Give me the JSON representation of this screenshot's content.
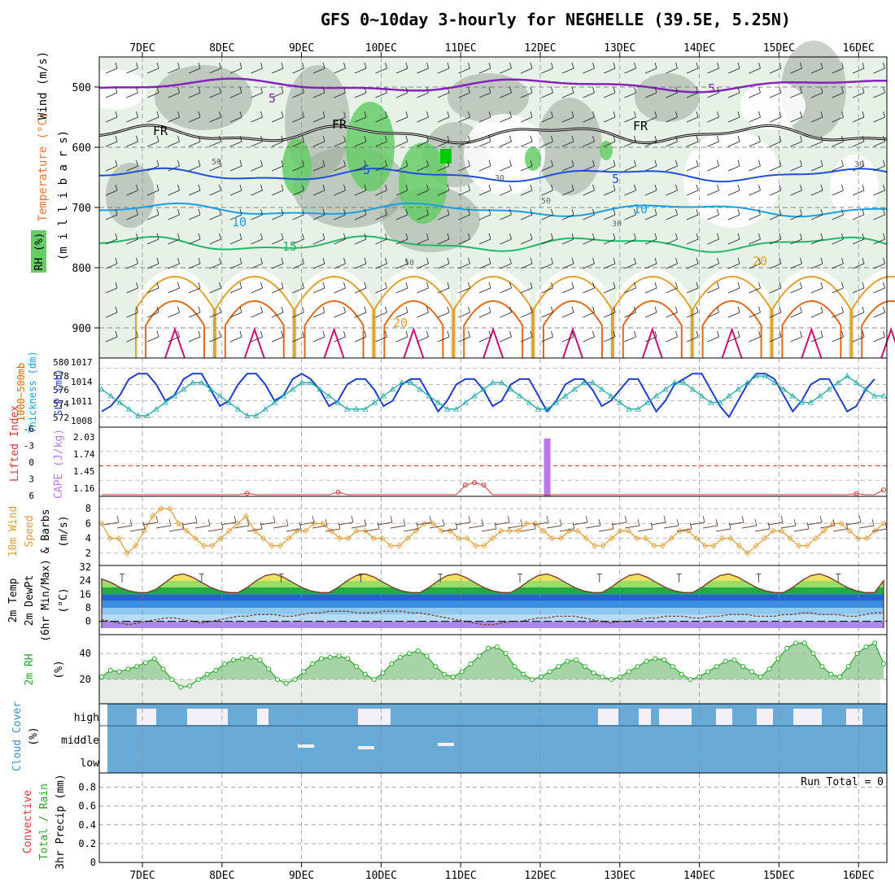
{
  "title": "GFS 0~10day 3-hourly for NEGHELLE (39.5E, 5.25N)",
  "dates": [
    "7DEC",
    "8DEC",
    "9DEC",
    "10DEC",
    "11DEC",
    "12DEC",
    "13DEC",
    "14DEC",
    "15DEC",
    "16DEC"
  ],
  "colors": {
    "rh_green": "#66cc66",
    "pale_green": "#e6f2e6",
    "gray_green": "#9aaa9a",
    "slp_blue": "#1e3fcc",
    "thickness_cyan": "#22aaaa",
    "cape_purple": "#bb77ee",
    "lifted_red": "#dd3333",
    "wind_orange": "#e69a2e",
    "cloud_blue": "#6aaad6",
    "temp_label": "#e07a3c",
    "wind_label": "#5b2a8c"
  },
  "upper_panel": {
    "ylabels": {
      "wind": "Wind (m/s)",
      "temperature": "Temperature (°C)",
      "rh": "RH (%)",
      "millibars": "(m i l l i b a r s)"
    },
    "pressure_ticks": [
      "500",
      "600",
      "700",
      "800",
      "900"
    ],
    "contour_labels": [
      "5",
      "5",
      "FR",
      "FR",
      "FR",
      "5",
      "5",
      "10",
      "10",
      "15",
      "20",
      "20",
      "50",
      "50",
      "30",
      "30",
      "50",
      "30"
    ]
  },
  "slp_panel": {
    "left_label": "Thickness (dm)",
    "left_label_top": "1000~500mb",
    "right_label": "SLP (mb)",
    "thick_ticks": [
      "580",
      "578",
      "576",
      "574",
      "572"
    ],
    "slp_ticks": [
      "1017",
      "1014",
      "1011",
      "1008"
    ]
  },
  "cape_panel": {
    "left_label": "Lifted Index",
    "right_label": "CAPE (J/kg)",
    "li_ticks": [
      "-6",
      "-3",
      "0",
      "3",
      "6"
    ],
    "cape_ticks": [
      "2.03",
      "1.74",
      "1.45",
      "1.16"
    ]
  },
  "wind_panel": {
    "label1": "10m Wind",
    "label2": "Speed",
    "label3": "& Barbs",
    "unit": "(m/s)",
    "ticks": [
      "8",
      "6",
      "4",
      "2"
    ]
  },
  "temp_panel": {
    "label1": "2m Temp",
    "label2": "2m DewPt",
    "label3": "(6hr Min/Max)",
    "unit": "(°C)",
    "ticks": [
      "32",
      "24",
      "16",
      "8",
      "0"
    ]
  },
  "rh_panel": {
    "label": "2m RH",
    "unit": "(%)",
    "ticks": [
      "40",
      "20"
    ]
  },
  "cloud_panel": {
    "label": "Cloud Cover",
    "unit": "(%)",
    "levels": [
      "high",
      "middle",
      "low"
    ]
  },
  "precip_panel": {
    "label1": "3hr Precip (mm)",
    "label2": "Total / Rain",
    "label3": "Convective",
    "run_total": "Run Total = 0",
    "ticks": [
      "0.8",
      "0.6",
      "0.4",
      "0.2",
      "0"
    ]
  },
  "chart_data": {
    "type": "line",
    "title": "GFS 0~10day 3-hourly for NEGHELLE (39.5E, 5.25N)",
    "x_categories": [
      "7DEC",
      "8DEC",
      "9DEC",
      "10DEC",
      "11DEC",
      "12DEC",
      "13DEC",
      "14DEC",
      "15DEC",
      "16DEC"
    ],
    "slp_mb": [
      1009,
      1010,
      1012,
      1015,
      1016,
      1016,
      1014,
      1011,
      1012,
      1015,
      1016,
      1016,
      1013,
      1010,
      1011,
      1014,
      1016,
      1016,
      1014,
      1011,
      1012,
      1015,
      1016,
      1015,
      1013,
      1010,
      1011,
      1014,
      1015,
      1015,
      1013,
      1010,
      1011,
      1014,
      1015,
      1015,
      1012,
      1009,
      1011,
      1014,
      1015,
      1015,
      1013,
      1010,
      1011,
      1014,
      1015,
      1015,
      1012,
      1009,
      1011,
      1014,
      1015,
      1015,
      1013,
      1010,
      1011,
      1013,
      1015,
      1015,
      1012,
      1009,
      1011,
      1014,
      1015,
      1016,
      1016,
      1013,
      1010,
      1008,
      1011,
      1014,
      1016,
      1016,
      1015,
      1012,
      1009,
      1011,
      1014,
      1015,
      1015,
      1012,
      1009,
      1010,
      1013,
      1015
    ],
    "thickness_dm": [
      576,
      575,
      574,
      573,
      572,
      572,
      573,
      574,
      575,
      576,
      577,
      577,
      576,
      575,
      574,
      573,
      572,
      572,
      573,
      574,
      575,
      576,
      577,
      577,
      576,
      575,
      574,
      573,
      573,
      573,
      574,
      575,
      576,
      577,
      577,
      576,
      575,
      574,
      573,
      573,
      574,
      575,
      576,
      577,
      577,
      576,
      575,
      574,
      573,
      573,
      574,
      575,
      576,
      577,
      577,
      576,
      575,
      574,
      573,
      573,
      574,
      575,
      576,
      577,
      577,
      576,
      575,
      574,
      574,
      575,
      576,
      577,
      578,
      578,
      577,
      576,
      575,
      574,
      574,
      575,
      576,
      577,
      578,
      577,
      576,
      575,
      575
    ],
    "cape_jkg": [
      0,
      0,
      0,
      0,
      0,
      0,
      0,
      0,
      0,
      0,
      0,
      0,
      0,
      0,
      0,
      0,
      0,
      0,
      0,
      0,
      0,
      0,
      0,
      0,
      0,
      0,
      0,
      0,
      0,
      0,
      0,
      0,
      0,
      0,
      0,
      0,
      0,
      0,
      0,
      0,
      0,
      0,
      0,
      0,
      0,
      0,
      0,
      0,
      0,
      2.03,
      0,
      0,
      0,
      0,
      0,
      0,
      0,
      0,
      0,
      0,
      0,
      0,
      0,
      0,
      0,
      0,
      0,
      0,
      0,
      0,
      0,
      0,
      0,
      0,
      0,
      0,
      0,
      0,
      0,
      0,
      0,
      0,
      0,
      0,
      0,
      0,
      0
    ],
    "lifted_index": [
      6,
      6,
      6,
      6,
      6,
      6,
      6,
      6,
      6,
      6,
      6,
      6,
      6,
      6,
      6,
      6,
      5.7,
      6,
      6,
      6,
      6,
      6,
      6,
      6,
      6,
      6,
      5.5,
      6,
      6,
      6,
      6,
      6,
      6,
      6,
      6,
      6,
      6,
      6,
      6,
      6,
      4,
      3.5,
      4,
      6,
      6,
      6,
      6,
      6,
      6,
      6,
      6,
      6,
      6,
      6,
      6,
      6,
      6,
      6,
      6,
      6,
      6,
      6,
      6,
      6,
      6,
      6,
      6,
      6,
      6,
      6,
      6,
      6,
      6,
      6,
      6,
      6,
      6,
      6,
      6,
      6,
      6,
      6,
      6,
      5.8,
      6,
      6,
      5
    ],
    "wind_speed_ms": [
      6,
      4,
      4,
      2,
      3,
      5,
      7,
      8,
      8,
      6,
      5,
      4,
      3,
      3,
      4,
      5,
      6,
      7,
      5,
      4,
      3,
      3,
      4,
      5,
      5,
      6,
      6,
      5,
      4,
      4,
      5,
      5,
      4,
      4,
      3,
      3,
      4,
      5,
      6,
      6,
      5,
      5,
      4,
      4,
      3,
      3,
      4,
      5,
      5,
      5,
      6,
      6,
      5,
      4,
      4,
      5,
      5,
      4,
      3,
      3,
      4,
      5,
      5,
      4,
      4,
      3,
      3,
      4,
      5,
      5,
      4,
      3,
      3,
      4,
      4,
      3,
      2,
      3,
      4,
      5,
      5,
      4,
      3,
      3,
      4,
      5,
      6,
      6,
      5,
      4,
      4,
      5,
      6
    ],
    "temp_2m_c": [
      25,
      23,
      20,
      18,
      17,
      17,
      19,
      23,
      27,
      28,
      26,
      23,
      20,
      18,
      17,
      17,
      20,
      24,
      27,
      28,
      26,
      23,
      20,
      18,
      17,
      17,
      20,
      24,
      27,
      28,
      26,
      23,
      20,
      18,
      17,
      17,
      20,
      24,
      27,
      28,
      26,
      23,
      20,
      18,
      17,
      17,
      20,
      24,
      27,
      28,
      26,
      23,
      20,
      18,
      17,
      17,
      20,
      24,
      27,
      28,
      26,
      23,
      20,
      18,
      17,
      17,
      20,
      24,
      27,
      28,
      26,
      23,
      20,
      18,
      17,
      17,
      20,
      24,
      27,
      28,
      26,
      23,
      20,
      18,
      17,
      17,
      24
    ],
    "dewpt_2m_c": [
      1,
      0,
      -1,
      -2,
      -1,
      0,
      1,
      2,
      2,
      1,
      0,
      -1,
      0,
      1,
      2,
      3,
      3,
      4,
      4,
      4,
      3,
      3,
      4,
      5,
      5,
      6,
      6,
      6,
      5,
      5,
      5,
      6,
      6,
      6,
      5,
      5,
      4,
      3,
      2,
      1,
      0,
      -1,
      -2,
      -2,
      -1,
      0,
      0,
      1,
      2,
      2,
      3,
      3,
      3,
      2,
      1,
      0,
      -1,
      0,
      0,
      1,
      2,
      2,
      3,
      3,
      3,
      2,
      2,
      3,
      3,
      4,
      4,
      4,
      3,
      3,
      3,
      4,
      4,
      5,
      5,
      4,
      4,
      4,
      3,
      3,
      4,
      5,
      5
    ],
    "rh_2m_pct": [
      22,
      27,
      26,
      28,
      30,
      33,
      36,
      28,
      20,
      14,
      15,
      20,
      24,
      27,
      32,
      35,
      36,
      37,
      35,
      28,
      20,
      17,
      20,
      26,
      32,
      36,
      37,
      38,
      36,
      30,
      24,
      20,
      25,
      32,
      37,
      40,
      42,
      38,
      30,
      24,
      22,
      26,
      32,
      38,
      44,
      45,
      40,
      30,
      24,
      20,
      22,
      26,
      30,
      34,
      35,
      30,
      25,
      22,
      20,
      22,
      26,
      30,
      34,
      36,
      35,
      30,
      24,
      20,
      22,
      26,
      30,
      34,
      35,
      30,
      26,
      22,
      28,
      36,
      44,
      48,
      48,
      40,
      30,
      24,
      22,
      30,
      40,
      45,
      48,
      32
    ],
    "precip_mm": [
      0,
      0,
      0,
      0,
      0,
      0,
      0,
      0,
      0,
      0
    ]
  }
}
